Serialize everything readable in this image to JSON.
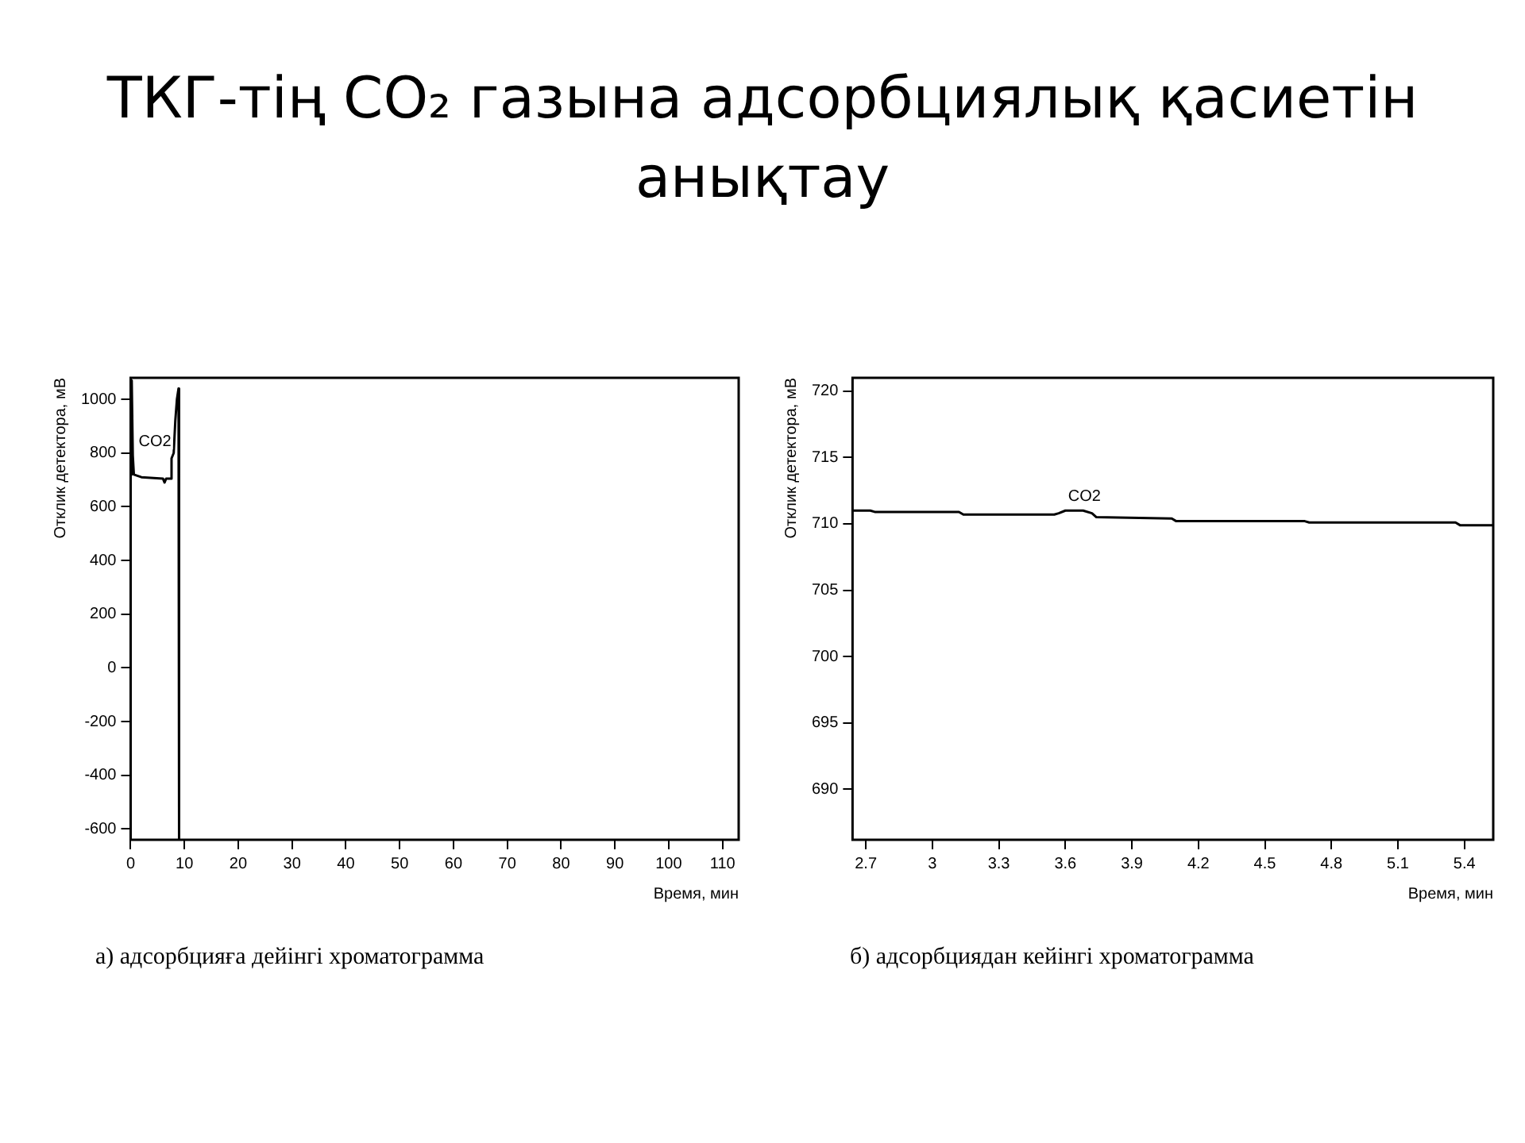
{
  "chart_data": [
    {
      "type": "line",
      "title": "ТКГ-тің CO₂ газына адсорбциялық қасиетін анықтау",
      "xlabel": "Время, мин",
      "ylabel": "Отклик детектора, мВ",
      "x": [
        0,
        0.2,
        0.4,
        0.6,
        2,
        6,
        6.3,
        6.6,
        7.4,
        7.6,
        8.0,
        8.3,
        8.6,
        8.9,
        9.0
      ],
      "series": [
        {
          "color": "#000000",
          "values": [
            720,
            1070,
            790,
            720,
            710,
            705,
            690,
            705,
            705,
            780,
            800,
            920,
            1000,
            1040,
            -640
          ]
        }
      ],
      "xlim": [
        0,
        113
      ],
      "xticks": [
        0,
        10,
        20,
        30,
        40,
        50,
        60,
        70,
        80,
        90,
        100,
        110
      ],
      "ylim": [
        -640,
        1080
      ],
      "yticks": [
        -600,
        -400,
        -200,
        0,
        200,
        400,
        600,
        800,
        1000
      ],
      "marker": "none",
      "legend": false,
      "annotations": [
        {
          "text": "CO2",
          "x": 0.4,
          "y": 790
        },
        "а) адсорбцияға дейінгі хроматограмма"
      ]
    },
    {
      "type": "line",
      "xlabel": "Время, мин",
      "ylabel": "Отклик детектора, мВ",
      "x": [
        2.64,
        2.72,
        2.74,
        3.12,
        3.14,
        3.55,
        3.57,
        3.6,
        3.68,
        3.72,
        3.74,
        4.08,
        4.1,
        4.68,
        4.7,
        5.36,
        5.38,
        5.53
      ],
      "series": [
        {
          "color": "#000000",
          "values": [
            711.0,
            711.0,
            710.9,
            710.9,
            710.7,
            710.7,
            710.8,
            711.0,
            711.0,
            710.8,
            710.5,
            710.4,
            710.2,
            710.2,
            710.1,
            710.1,
            709.9,
            709.9
          ]
        }
      ],
      "xlim": [
        2.64,
        5.53
      ],
      "xticks": [
        2.7,
        3,
        3.3,
        3.6,
        3.9,
        4.2,
        4.5,
        4.8,
        5.1,
        5.4
      ],
      "ylim": [
        686.2,
        721
      ],
      "yticks": [
        690,
        695,
        700,
        705,
        710,
        715,
        720
      ],
      "marker": "none",
      "legend": false,
      "annotations": [
        {
          "text": "CO2",
          "x": 3.6,
          "y": 711.0
        },
        "б) адсорбциядан кейінгі хроматограмма"
      ]
    }
  ]
}
